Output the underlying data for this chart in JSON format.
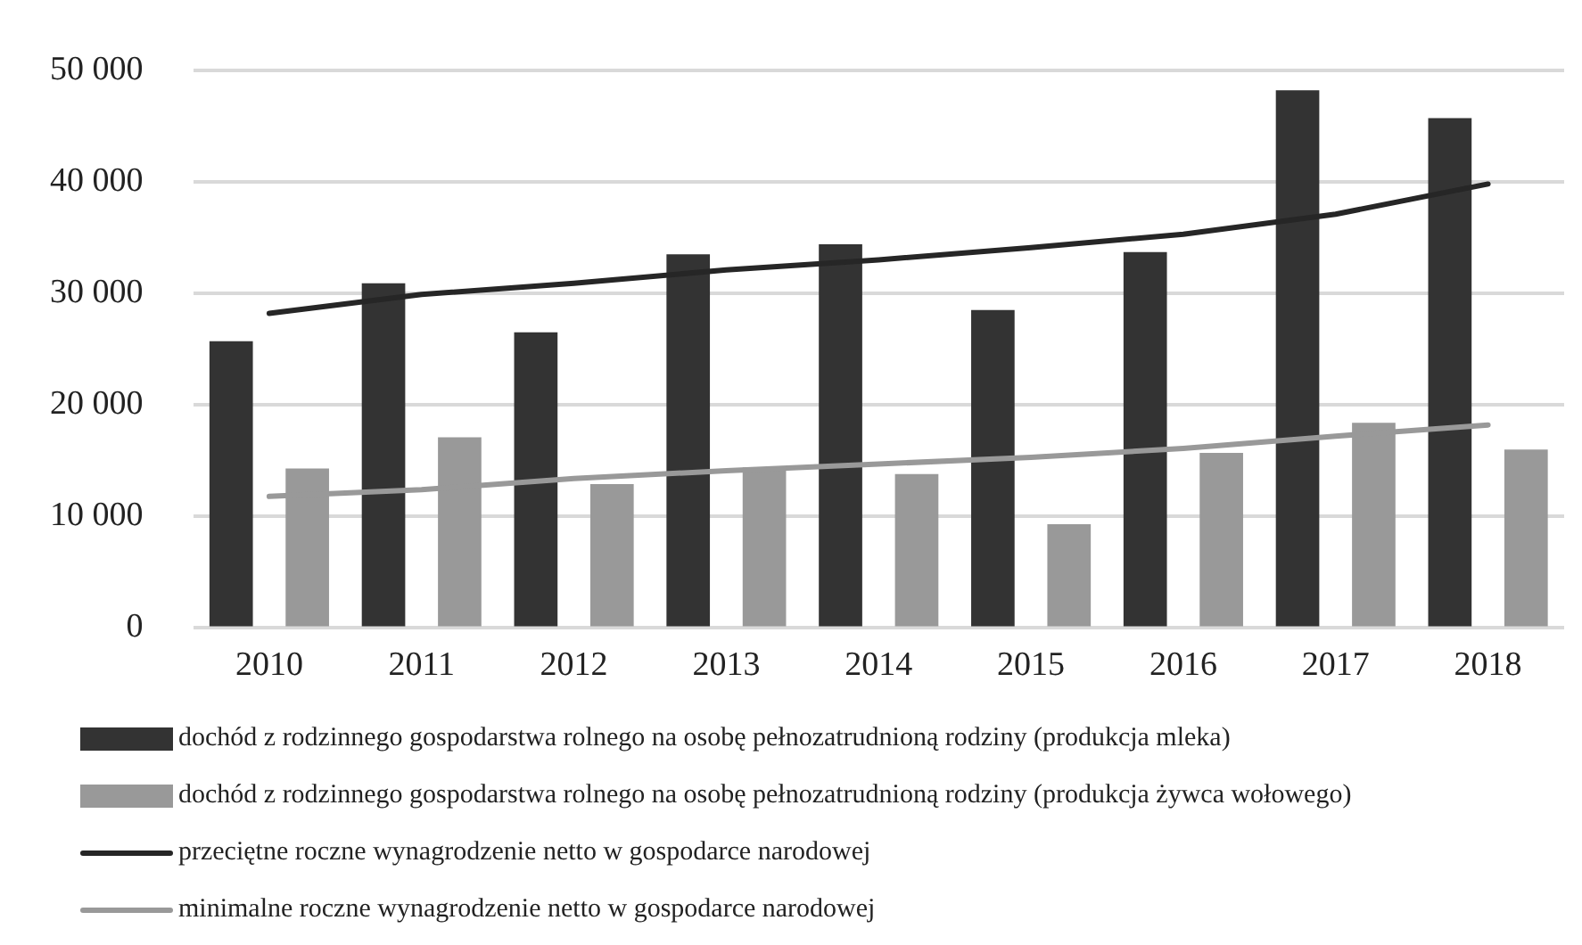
{
  "chart_data": {
    "type": "bar",
    "categories": [
      "2010",
      "2011",
      "2012",
      "2013",
      "2014",
      "2015",
      "2016",
      "2017",
      "2018"
    ],
    "series": [
      {
        "name": "dochód z rodzinnego gospodarstwa rolnego na osobę pełnozatrudnioną rodziny (produkcja mleka)",
        "color": "#333333",
        "values": [
          25700,
          30900,
          26500,
          33500,
          34400,
          28500,
          33700,
          48200,
          45700
        ]
      },
      {
        "name": "dochód z rodzinnego gospodarstwa rolnego na osobę pełnozatrudnioną rodziny (produkcja żywca wołowego)",
        "color": "#999999",
        "values": [
          14300,
          17100,
          12900,
          14400,
          13800,
          9300,
          15700,
          18400,
          16000
        ]
      },
      {
        "name": "przeciętne roczne wynagrodzenie netto w gospodarce narodowej",
        "type": "line",
        "color": "#262626",
        "values": [
          28200,
          29900,
          30900,
          32100,
          33000,
          34100,
          35300,
          37100,
          39800
        ]
      },
      {
        "name": "minimalne roczne wynagrodzenie netto w gospodarce narodowej",
        "type": "line",
        "color": "#999999",
        "values": [
          11800,
          12400,
          13400,
          14100,
          14700,
          15300,
          16100,
          17200,
          18200
        ]
      }
    ],
    "ylim": [
      0,
      50000
    ],
    "yticks": [
      {
        "value": 0,
        "label": "0"
      },
      {
        "value": 10000,
        "label": "10 000"
      },
      {
        "value": 20000,
        "label": "20 000"
      },
      {
        "value": 30000,
        "label": "30 000"
      },
      {
        "value": 40000,
        "label": "40 000"
      },
      {
        "value": 50000,
        "label": "50 000"
      }
    ],
    "grid": "y",
    "legend": "bottom",
    "marker": "none"
  }
}
